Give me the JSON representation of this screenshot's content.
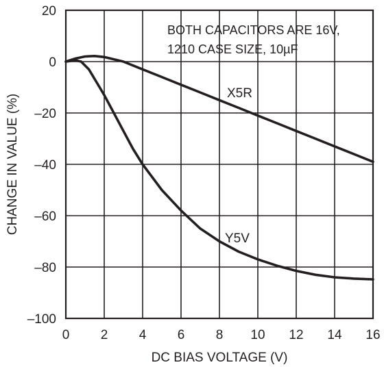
{
  "chart_data": {
    "type": "line",
    "xlabel": "DC BIAS VOLTAGE (V)",
    "ylabel": "CHANGE IN VALUE (%)",
    "xlim": [
      0,
      16
    ],
    "ylim": [
      -100,
      20
    ],
    "x_ticks": [
      0,
      2,
      4,
      6,
      8,
      10,
      12,
      14,
      16
    ],
    "y_ticks": [
      20,
      0,
      -20,
      -40,
      -60,
      -80,
      -100
    ],
    "x_tick_labels": [
      "0",
      "2",
      "4",
      "6",
      "8",
      "10",
      "12",
      "14",
      "16"
    ],
    "y_tick_labels": [
      "20",
      "0",
      "–20",
      "–40",
      "–60",
      "–80",
      "–100"
    ],
    "grid": true,
    "annotation_lines": [
      "BOTH CAPACITORS ARE 16V,",
      "1210 CASE SIZE, 10µF"
    ],
    "series": [
      {
        "name": "X5R",
        "x": [
          0,
          0.5,
          1,
          1.5,
          2,
          3,
          4,
          5,
          6,
          7,
          8,
          9,
          10,
          11,
          12,
          13,
          14,
          15,
          16
        ],
        "y": [
          0,
          1.2,
          2,
          2.2,
          1.8,
          0,
          -3,
          -6,
          -9,
          -12,
          -15,
          -18,
          -21,
          -24,
          -27,
          -30,
          -33,
          -36,
          -39
        ]
      },
      {
        "name": "Y5V",
        "x": [
          0,
          0.5,
          0.8,
          1.2,
          1.6,
          2,
          2.5,
          3,
          3.5,
          4,
          5,
          6,
          7,
          8,
          9,
          10,
          11,
          12,
          13,
          14,
          15,
          16
        ],
        "y": [
          0,
          0.5,
          0,
          -3,
          -8,
          -13,
          -20,
          -27,
          -34,
          -40,
          -50,
          -58,
          -65,
          -70,
          -74,
          -77,
          -79.5,
          -81.5,
          -83,
          -84,
          -84.5,
          -84.8
        ]
      }
    ]
  }
}
